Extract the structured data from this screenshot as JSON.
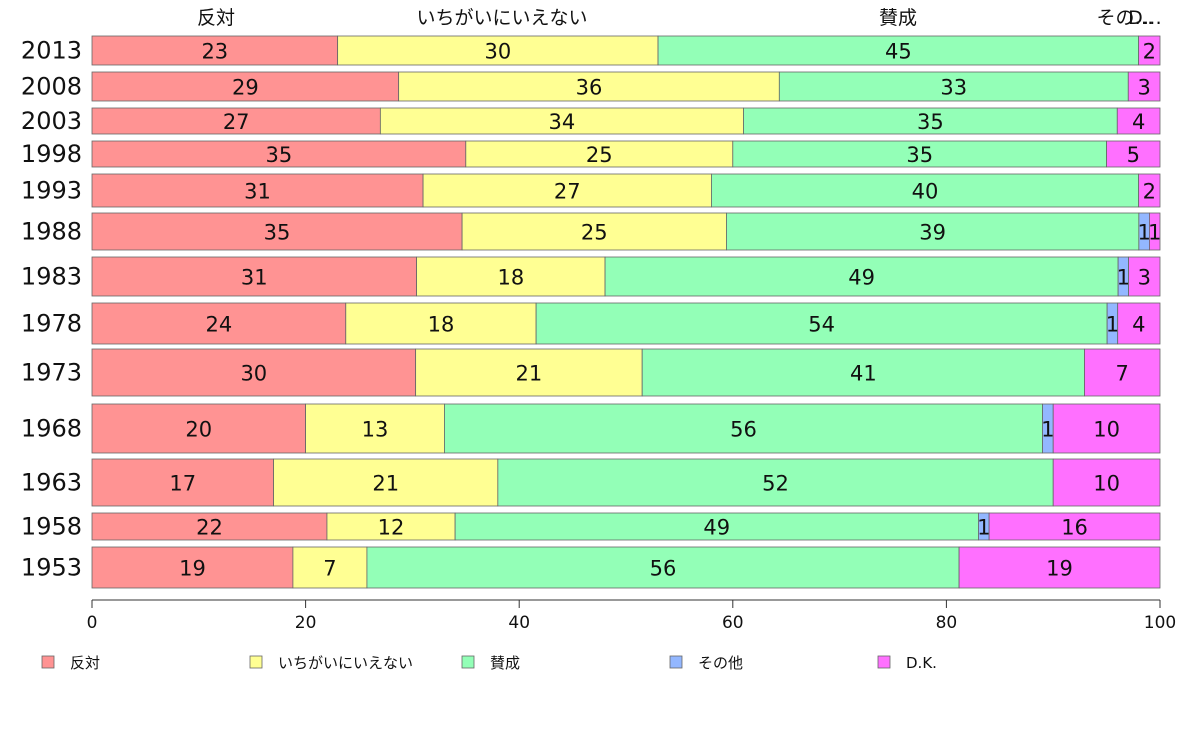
{
  "chart_data": {
    "type": "bar",
    "orientation": "horizontal",
    "stacked": true,
    "categories": [
      "2013",
      "2008",
      "2003",
      "1998",
      "1993",
      "1988",
      "1983",
      "1978",
      "1973",
      "1968",
      "1963",
      "1958",
      "1953"
    ],
    "series": [
      {
        "name": "反対",
        "color": "#ff9393",
        "values": [
          23,
          29,
          27,
          35,
          31,
          35,
          31,
          24,
          30,
          20,
          17,
          22,
          19
        ]
      },
      {
        "name": "いちがいにいえない",
        "color": "#ffff93",
        "values": [
          30,
          36,
          34,
          25,
          27,
          25,
          18,
          18,
          21,
          13,
          21,
          12,
          7
        ]
      },
      {
        "name": "賛成",
        "color": "#93ffb7",
        "values": [
          45,
          33,
          35,
          35,
          40,
          39,
          49,
          54,
          41,
          56,
          52,
          49,
          56
        ]
      },
      {
        "name": "その他",
        "color": "#93b7ff",
        "values": [
          0,
          0,
          0,
          0,
          0,
          1,
          1,
          1,
          0,
          1,
          0,
          1,
          0
        ]
      },
      {
        "name": "D.K.",
        "color": "#ff70ff",
        "values": [
          2,
          3,
          4,
          5,
          2,
          1,
          3,
          4,
          7,
          10,
          10,
          16,
          19
        ]
      }
    ],
    "top_labels": [
      "反対",
      "いちがいにいえない",
      "賛成",
      "その…",
      "D…"
    ],
    "xlim": [
      0,
      100
    ],
    "xticks": [
      "0",
      "20",
      "40",
      "60",
      "80",
      "100"
    ],
    "legend_position": "bottom",
    "grid": false
  }
}
